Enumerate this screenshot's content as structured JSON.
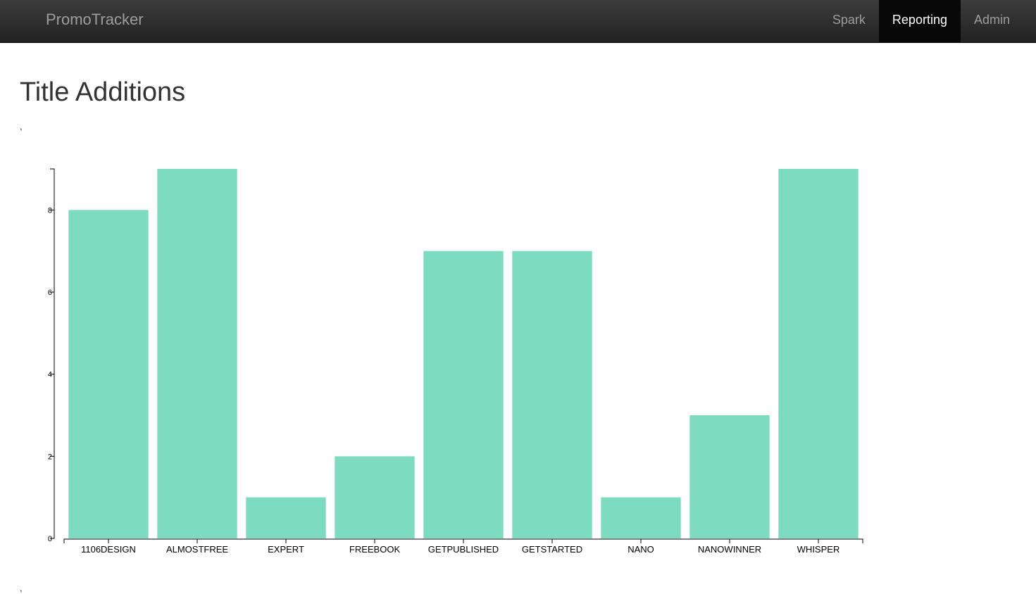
{
  "navbar": {
    "brand": "PromoTracker",
    "items": [
      {
        "label": "Spark",
        "active": false
      },
      {
        "label": "Reporting",
        "active": true
      },
      {
        "label": "Admin",
        "active": false
      }
    ]
  },
  "page": {
    "title": "Title Additions",
    "separator_top": ",",
    "separator_bottom": ","
  },
  "chart_data": {
    "type": "bar",
    "categories": [
      "1106DESIGN",
      "ALMOSTFREE",
      "EXPERT",
      "FREEBOOK",
      "GETPUBLISHED",
      "GETSTARTED",
      "NANO",
      "NANOWINNER",
      "WHISPER"
    ],
    "values": [
      8,
      9,
      1,
      2,
      7,
      7,
      1,
      3,
      9
    ],
    "title": "",
    "xlabel": "",
    "ylabel": "",
    "ylim": [
      0,
      9
    ],
    "yticks": [
      0,
      2,
      4,
      6,
      8
    ],
    "grid": false,
    "bar_color": "#7ddcc0",
    "axis_color": "#000000"
  }
}
